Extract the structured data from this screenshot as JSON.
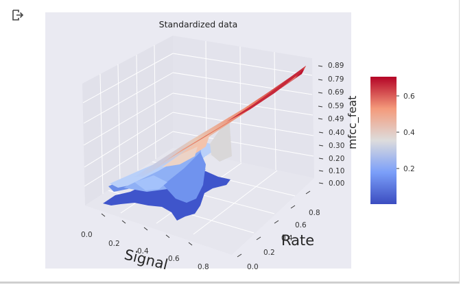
{
  "toolbar": {
    "output_icon": "output-redirect-icon"
  },
  "colors": {
    "pane_bg": "#eaeaf2",
    "grid": "#ffffff",
    "cmap_low": "#3b4cc0",
    "cmap_mid": "#dddcdc",
    "cmap_high": "#b40426"
  },
  "chart_data": {
    "type": "surface3d",
    "title": "Standardized data",
    "xlabel": "Signal",
    "ylabel": "Rate",
    "zlabel": "mfcc_feat",
    "x_ticks": [
      "0.0",
      "0.2",
      "0.4",
      "0.6",
      "0.8"
    ],
    "y_ticks": [
      "0.0",
      "0.2",
      "0.4",
      "0.6",
      "0.8"
    ],
    "z_ticks": [
      "0.00",
      "0.10",
      "0.20",
      "0.30",
      "0.40",
      "0.49",
      "0.59",
      "0.69",
      "0.79",
      "0.89"
    ],
    "zlim": [
      0.0,
      0.89
    ],
    "colormap": "coolwarm",
    "colorbar_ticks": [
      "0.2",
      "0.4",
      "0.6"
    ],
    "colorbar_range": [
      0.02,
      0.71
    ],
    "grid": true
  }
}
